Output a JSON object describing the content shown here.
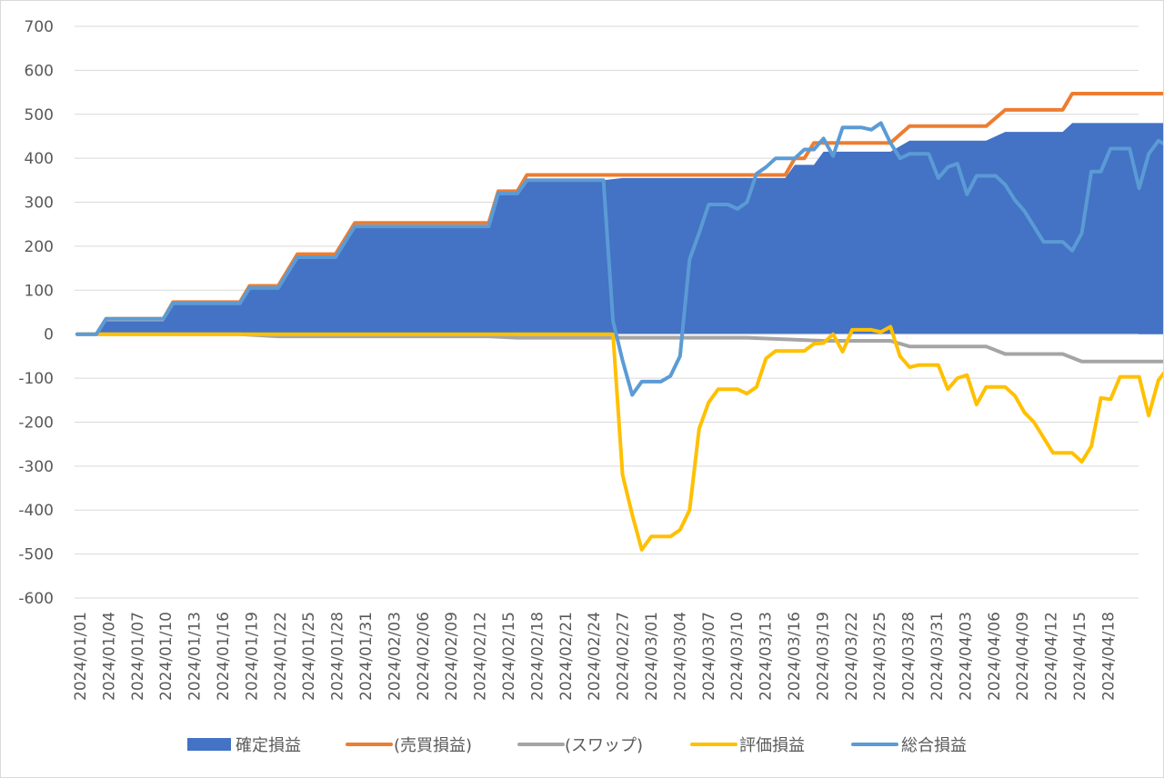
{
  "chart_data": {
    "type": "area",
    "title": "",
    "xlabel": "",
    "ylabel": "",
    "ylim": [
      -600,
      700
    ],
    "y_ticks": [
      "700",
      "600",
      "500",
      "400",
      "300",
      "200",
      "100",
      "0",
      "-100",
      "-200",
      "-300",
      "-400",
      "-500",
      "-600"
    ],
    "x_tick_labels": [
      "2024/01/01",
      "2024/01/04",
      "2024/01/07",
      "2024/01/10",
      "2024/01/13",
      "2024/01/16",
      "2024/01/19",
      "2024/01/22",
      "2024/01/25",
      "2024/01/28",
      "2024/01/31",
      "2024/02/03",
      "2024/02/06",
      "2024/02/09",
      "2024/02/12",
      "2024/02/15",
      "2024/02/18",
      "2024/02/21",
      "2024/02/24",
      "2024/02/27",
      "2024/03/01",
      "2024/03/04",
      "2024/03/07",
      "2024/03/10",
      "2024/03/13",
      "2024/03/16",
      "2024/03/19",
      "2024/03/22",
      "2024/03/25",
      "2024/03/28",
      "2024/03/31",
      "2024/04/03",
      "2024/04/06",
      "2024/04/09",
      "2024/04/12",
      "2024/04/15",
      "2024/04/18"
    ],
    "grid": true,
    "legend": "bottom",
    "series": [
      {
        "name": "確定損益",
        "kind": "area",
        "color": "#4472c4",
        "points": [
          [
            0,
            0
          ],
          [
            2,
            0
          ],
          [
            3,
            30
          ],
          [
            9,
            30
          ],
          [
            10,
            70
          ],
          [
            17,
            70
          ],
          [
            18,
            105
          ],
          [
            21,
            105
          ],
          [
            23,
            175
          ],
          [
            27,
            175
          ],
          [
            29,
            245
          ],
          [
            43,
            245
          ],
          [
            44,
            320
          ],
          [
            46,
            320
          ],
          [
            47,
            350
          ],
          [
            55,
            350
          ],
          [
            57,
            355
          ],
          [
            74,
            355
          ],
          [
            75,
            385
          ],
          [
            77,
            385
          ],
          [
            78,
            415
          ],
          [
            85,
            415
          ],
          [
            87,
            440
          ],
          [
            95,
            440
          ],
          [
            97,
            460
          ],
          [
            103,
            460
          ],
          [
            104,
            480
          ],
          [
            130,
            480
          ],
          [
            131,
            520
          ],
          [
            140,
            520
          ]
        ]
      },
      {
        "name": "(売買損益)",
        "kind": "line",
        "color": "#ed7d31",
        "points": [
          [
            0,
            0
          ],
          [
            2,
            0
          ],
          [
            3,
            35
          ],
          [
            9,
            35
          ],
          [
            10,
            73
          ],
          [
            17,
            73
          ],
          [
            18,
            110
          ],
          [
            21,
            110
          ],
          [
            23,
            182
          ],
          [
            27,
            182
          ],
          [
            29,
            253
          ],
          [
            43,
            253
          ],
          [
            44,
            325
          ],
          [
            46,
            325
          ],
          [
            47,
            362
          ],
          [
            55,
            362
          ],
          [
            74,
            362
          ],
          [
            75,
            400
          ],
          [
            76,
            400
          ],
          [
            77,
            435
          ],
          [
            85,
            435
          ],
          [
            87,
            473
          ],
          [
            95,
            473
          ],
          [
            97,
            510
          ],
          [
            103,
            510
          ],
          [
            104,
            547
          ],
          [
            130,
            547
          ],
          [
            131,
            583
          ],
          [
            140,
            583
          ]
        ]
      },
      {
        "name": "(スワップ)",
        "kind": "line",
        "color": "#a5a5a5",
        "points": [
          [
            0,
            0
          ],
          [
            17,
            0
          ],
          [
            21,
            -5
          ],
          [
            43,
            -5
          ],
          [
            46,
            -8
          ],
          [
            56,
            -8
          ],
          [
            70,
            -8
          ],
          [
            78,
            -15
          ],
          [
            85,
            -15
          ],
          [
            87,
            -28
          ],
          [
            95,
            -28
          ],
          [
            97,
            -45
          ],
          [
            103,
            -45
          ],
          [
            105,
            -62
          ],
          [
            140,
            -62
          ]
        ]
      },
      {
        "name": "評価損益",
        "kind": "line",
        "color": "#ffc000",
        "points": [
          [
            0,
            0
          ],
          [
            56,
            0
          ],
          [
            57,
            -320
          ],
          [
            58,
            -410
          ],
          [
            59,
            -490
          ],
          [
            60,
            -460
          ],
          [
            61,
            -460
          ],
          [
            62,
            -460
          ],
          [
            63,
            -445
          ],
          [
            64,
            -400
          ],
          [
            65,
            -215
          ],
          [
            66,
            -155
          ],
          [
            67,
            -125
          ],
          [
            68,
            -125
          ],
          [
            69,
            -125
          ],
          [
            70,
            -135
          ],
          [
            71,
            -120
          ],
          [
            72,
            -55
          ],
          [
            73,
            -38
          ],
          [
            74,
            -38
          ],
          [
            75,
            -38
          ],
          [
            76,
            -38
          ],
          [
            77,
            -22
          ],
          [
            78,
            -20
          ],
          [
            79,
            0
          ],
          [
            80,
            -40
          ],
          [
            81,
            10
          ],
          [
            82,
            10
          ],
          [
            83,
            10
          ],
          [
            84,
            5
          ],
          [
            85,
            17
          ],
          [
            86,
            -50
          ],
          [
            87,
            -75
          ],
          [
            88,
            -70
          ],
          [
            89,
            -70
          ],
          [
            90,
            -70
          ],
          [
            91,
            -125
          ],
          [
            92,
            -100
          ],
          [
            93,
            -93
          ],
          [
            94,
            -160
          ],
          [
            95,
            -120
          ],
          [
            96,
            -120
          ],
          [
            97,
            -120
          ],
          [
            98,
            -140
          ],
          [
            99,
            -178
          ],
          [
            100,
            -200
          ],
          [
            101,
            -235
          ],
          [
            102,
            -270
          ],
          [
            103,
            -270
          ],
          [
            104,
            -270
          ],
          [
            105,
            -290
          ],
          [
            106,
            -255
          ],
          [
            107,
            -145
          ],
          [
            108,
            -148
          ],
          [
            109,
            -97
          ],
          [
            110,
            -97
          ],
          [
            111,
            -97
          ],
          [
            112,
            -185
          ],
          [
            113,
            -105
          ],
          [
            114,
            -76
          ],
          [
            115,
            -90
          ],
          [
            116,
            -140
          ],
          [
            117,
            -140
          ]
        ]
      },
      {
        "name": "総合損益",
        "kind": "line",
        "color": "#5b9bd5",
        "points": [
          [
            0,
            0
          ],
          [
            2,
            0
          ],
          [
            3,
            35
          ],
          [
            9,
            35
          ],
          [
            10,
            70
          ],
          [
            17,
            70
          ],
          [
            18,
            105
          ],
          [
            21,
            105
          ],
          [
            23,
            175
          ],
          [
            27,
            175
          ],
          [
            29,
            245
          ],
          [
            43,
            245
          ],
          [
            44,
            320
          ],
          [
            46,
            320
          ],
          [
            47,
            350
          ],
          [
            55,
            350
          ],
          [
            56,
            30
          ],
          [
            57,
            -60
          ],
          [
            58,
            -138
          ],
          [
            59,
            -108
          ],
          [
            60,
            -108
          ],
          [
            61,
            -108
          ],
          [
            62,
            -95
          ],
          [
            63,
            -50
          ],
          [
            64,
            170
          ],
          [
            65,
            230
          ],
          [
            66,
            295
          ],
          [
            67,
            295
          ],
          [
            68,
            295
          ],
          [
            69,
            285
          ],
          [
            70,
            300
          ],
          [
            71,
            365
          ],
          [
            72,
            380
          ],
          [
            73,
            400
          ],
          [
            74,
            400
          ],
          [
            75,
            400
          ],
          [
            76,
            420
          ],
          [
            77,
            420
          ],
          [
            78,
            445
          ],
          [
            79,
            405
          ],
          [
            80,
            470
          ],
          [
            81,
            470
          ],
          [
            82,
            470
          ],
          [
            83,
            465
          ],
          [
            84,
            480
          ],
          [
            85,
            435
          ],
          [
            86,
            400
          ],
          [
            87,
            410
          ],
          [
            88,
            410
          ],
          [
            89,
            410
          ],
          [
            90,
            355
          ],
          [
            91,
            380
          ],
          [
            92,
            388
          ],
          [
            93,
            318
          ],
          [
            94,
            360
          ],
          [
            95,
            360
          ],
          [
            96,
            360
          ],
          [
            97,
            340
          ],
          [
            98,
            305
          ],
          [
            99,
            280
          ],
          [
            100,
            245
          ],
          [
            101,
            210
          ],
          [
            102,
            210
          ],
          [
            103,
            210
          ],
          [
            104,
            190
          ],
          [
            105,
            230
          ],
          [
            106,
            370
          ],
          [
            107,
            370
          ],
          [
            108,
            422
          ],
          [
            109,
            422
          ],
          [
            110,
            422
          ],
          [
            111,
            332
          ],
          [
            112,
            410
          ],
          [
            113,
            440
          ],
          [
            114,
            428
          ],
          [
            115,
            380
          ],
          [
            116,
            380
          ]
        ]
      }
    ]
  }
}
